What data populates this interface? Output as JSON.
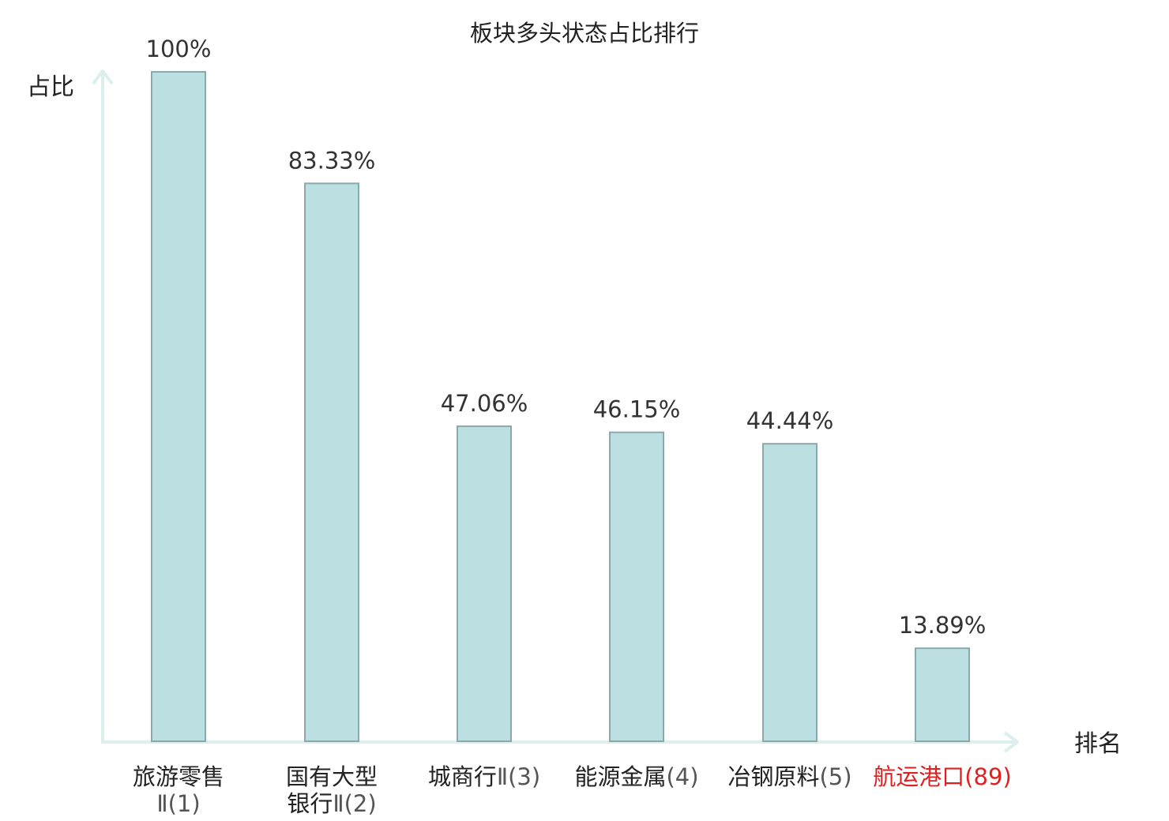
{
  "chart_data": {
    "type": "bar",
    "title": "板块多头状态占比排行",
    "ylabel": "占比",
    "xlabel": "排名",
    "ylim": [
      0,
      100
    ],
    "categories": [
      {
        "lines": [
          {
            "name": "旅游零售",
            "rank": ""
          },
          {
            "name": "",
            "rank": "Ⅱ(1)"
          }
        ],
        "highlight": false
      },
      {
        "lines": [
          {
            "name": "国有大型",
            "rank": ""
          },
          {
            "name": "银行",
            "rank": "Ⅱ(2)"
          }
        ],
        "highlight": false
      },
      {
        "lines": [
          {
            "name": "城商行",
            "rank": "Ⅱ(3)"
          }
        ],
        "highlight": false
      },
      {
        "lines": [
          {
            "name": "能源金属",
            "rank": "(4)"
          }
        ],
        "highlight": false
      },
      {
        "lines": [
          {
            "name": "冶钢原料",
            "rank": "(5)"
          }
        ],
        "highlight": false
      },
      {
        "lines": [
          {
            "name": "航运港口",
            "rank": "(89)"
          }
        ],
        "highlight": true
      }
    ],
    "values": [
      100,
      83.33,
      47.06,
      46.15,
      44.44,
      13.89
    ],
    "value_labels": [
      "100%",
      "83.33%",
      "47.06%",
      "46.15%",
      "44.44%",
      "13.89%"
    ],
    "grid": false,
    "legend": "none",
    "colors": {
      "bar_fill": "#bce0e2",
      "bar_stroke": "#8aa9ad",
      "axis": "#dcefed",
      "highlight_text": "#e02020"
    }
  }
}
